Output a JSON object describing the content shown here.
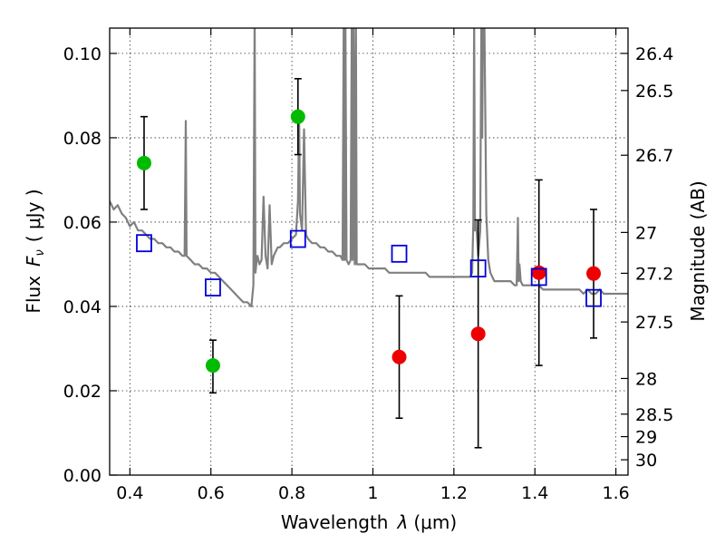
{
  "chart_data": {
    "type": "scatter",
    "xlabel_prefix": "Wavelength",
    "xlabel_symbol": "λ",
    "xlabel_unit": "(μm)",
    "ylabel_prefix": "Flux",
    "ylabel_symbol_main": "F",
    "ylabel_symbol_sub": "ν",
    "ylabel_unit": "( μJy )",
    "y2label": "Magnitude (AB)",
    "xlim": [
      0.35,
      1.63
    ],
    "ylim": [
      0.0,
      0.106
    ],
    "grid": true,
    "x_ticks": [
      {
        "value": 0.4,
        "label": "0.4"
      },
      {
        "value": 0.6,
        "label": "0.6"
      },
      {
        "value": 0.8,
        "label": "0.8"
      },
      {
        "value": 1.0,
        "label": "1"
      },
      {
        "value": 1.2,
        "label": "1.2"
      },
      {
        "value": 1.4,
        "label": "1.4"
      },
      {
        "value": 1.6,
        "label": "1.6"
      }
    ],
    "y_ticks": [
      {
        "value": 0.0,
        "label": "0.00"
      },
      {
        "value": 0.02,
        "label": "0.02"
      },
      {
        "value": 0.04,
        "label": "0.04"
      },
      {
        "value": 0.06,
        "label": "0.06"
      },
      {
        "value": 0.08,
        "label": "0.08"
      },
      {
        "value": 0.1,
        "label": "0.10"
      }
    ],
    "y2_ticks": [
      {
        "mag": 26.4,
        "label": "26.4"
      },
      {
        "mag": 26.5,
        "label": "26.5"
      },
      {
        "mag": 26.7,
        "label": "26.7"
      },
      {
        "mag": 27.0,
        "label": "27"
      },
      {
        "mag": 27.2,
        "label": "27.2"
      },
      {
        "mag": 27.5,
        "label": "27.5"
      },
      {
        "mag": 28.0,
        "label": "28"
      },
      {
        "mag": 28.5,
        "label": "28.5"
      },
      {
        "mag": 29.0,
        "label": "29"
      },
      {
        "mag": 30.0,
        "label": "30"
      }
    ],
    "model_spectrum": {
      "color": "#808080",
      "x": [
        0.35,
        0.36,
        0.37,
        0.38,
        0.39,
        0.4,
        0.41,
        0.42,
        0.43,
        0.44,
        0.45,
        0.46,
        0.47,
        0.48,
        0.49,
        0.5,
        0.51,
        0.52,
        0.53,
        0.535,
        0.538,
        0.54,
        0.55,
        0.56,
        0.57,
        0.58,
        0.59,
        0.6,
        0.61,
        0.62,
        0.63,
        0.64,
        0.65,
        0.66,
        0.67,
        0.68,
        0.69,
        0.7,
        0.705,
        0.708,
        0.71,
        0.712,
        0.715,
        0.72,
        0.725,
        0.73,
        0.735,
        0.74,
        0.745,
        0.75,
        0.755,
        0.76,
        0.765,
        0.77,
        0.78,
        0.79,
        0.8,
        0.81,
        0.815,
        0.818,
        0.82,
        0.825,
        0.83,
        0.835,
        0.84,
        0.85,
        0.86,
        0.87,
        0.88,
        0.89,
        0.9,
        0.91,
        0.92,
        0.925,
        0.928,
        0.93,
        0.932,
        0.935,
        0.94,
        0.945,
        0.948,
        0.95,
        0.952,
        0.955,
        0.958,
        0.96,
        0.97,
        0.98,
        0.99,
        1.0,
        1.01,
        1.02,
        1.03,
        1.04,
        1.05,
        1.06,
        1.07,
        1.08,
        1.09,
        1.1,
        1.11,
        1.12,
        1.13,
        1.14,
        1.15,
        1.16,
        1.17,
        1.18,
        1.19,
        1.2,
        1.21,
        1.22,
        1.23,
        1.24,
        1.245,
        1.248,
        1.25,
        1.252,
        1.255,
        1.26,
        1.265,
        1.268,
        1.27,
        1.272,
        1.275,
        1.28,
        1.285,
        1.29,
        1.3,
        1.31,
        1.32,
        1.33,
        1.34,
        1.35,
        1.355,
        1.358,
        1.36,
        1.362,
        1.365,
        1.37,
        1.38,
        1.39,
        1.4,
        1.41,
        1.42,
        1.43,
        1.44,
        1.45,
        1.46,
        1.47,
        1.48,
        1.49,
        1.5,
        1.51,
        1.52,
        1.53,
        1.54,
        1.55,
        1.56,
        1.57,
        1.58,
        1.59,
        1.6,
        1.61,
        1.62,
        1.63
      ],
      "y": [
        0.065,
        0.063,
        0.064,
        0.062,
        0.061,
        0.059,
        0.06,
        0.058,
        0.058,
        0.057,
        0.056,
        0.056,
        0.055,
        0.055,
        0.054,
        0.054,
        0.053,
        0.053,
        0.052,
        0.052,
        0.084,
        0.052,
        0.051,
        0.05,
        0.05,
        0.049,
        0.049,
        0.048,
        0.048,
        0.047,
        0.046,
        0.045,
        0.044,
        0.043,
        0.042,
        0.041,
        0.041,
        0.04,
        0.045,
        0.11,
        0.048,
        0.05,
        0.052,
        0.05,
        0.051,
        0.066,
        0.052,
        0.049,
        0.064,
        0.05,
        0.052,
        0.053,
        0.054,
        0.054,
        0.055,
        0.055,
        0.056,
        0.057,
        0.065,
        0.085,
        0.062,
        0.058,
        0.082,
        0.057,
        0.056,
        0.055,
        0.055,
        0.054,
        0.054,
        0.053,
        0.053,
        0.052,
        0.052,
        0.051,
        0.11,
        0.051,
        0.11,
        0.051,
        0.05,
        0.051,
        0.11,
        0.051,
        0.11,
        0.05,
        0.11,
        0.05,
        0.05,
        0.05,
        0.049,
        0.049,
        0.049,
        0.049,
        0.049,
        0.048,
        0.048,
        0.048,
        0.048,
        0.048,
        0.048,
        0.048,
        0.048,
        0.048,
        0.048,
        0.047,
        0.047,
        0.047,
        0.047,
        0.047,
        0.047,
        0.047,
        0.047,
        0.047,
        0.047,
        0.047,
        0.048,
        0.06,
        0.11,
        0.058,
        0.06,
        0.052,
        0.058,
        0.11,
        0.08,
        0.108,
        0.11,
        0.062,
        0.051,
        0.048,
        0.046,
        0.046,
        0.046,
        0.046,
        0.046,
        0.045,
        0.045,
        0.061,
        0.046,
        0.05,
        0.046,
        0.045,
        0.045,
        0.045,
        0.045,
        0.045,
        0.044,
        0.044,
        0.044,
        0.044,
        0.044,
        0.044,
        0.044,
        0.044,
        0.044,
        0.044,
        0.043,
        0.044,
        0.043,
        0.043,
        0.044,
        0.043,
        0.043,
        0.043,
        0.043,
        0.043,
        0.043,
        0.043
      ]
    },
    "series": [
      {
        "marker": "circle",
        "color": "#00bb00",
        "points": [
          {
            "x": 0.435,
            "y": 0.074,
            "yerr_low": 0.063,
            "yerr_high": 0.085
          },
          {
            "x": 0.605,
            "y": 0.026,
            "yerr_low": 0.0195,
            "yerr_high": 0.032
          },
          {
            "x": 0.815,
            "y": 0.085,
            "yerr_low": 0.076,
            "yerr_high": 0.094
          }
        ]
      },
      {
        "marker": "circle",
        "color": "#ee0000",
        "points": [
          {
            "x": 1.065,
            "y": 0.028,
            "yerr_low": 0.0135,
            "yerr_high": 0.0425
          },
          {
            "x": 1.26,
            "y": 0.0335,
            "yerr_low": 0.0065,
            "yerr_high": 0.0605
          },
          {
            "x": 1.41,
            "y": 0.048,
            "yerr_low": 0.026,
            "yerr_high": 0.07
          },
          {
            "x": 1.545,
            "y": 0.0478,
            "yerr_low": 0.0325,
            "yerr_high": 0.063
          }
        ]
      },
      {
        "marker": "open-square",
        "color": "#0000dd",
        "points": [
          {
            "x": 0.435,
            "y": 0.055
          },
          {
            "x": 0.605,
            "y": 0.0445
          },
          {
            "x": 0.815,
            "y": 0.056
          },
          {
            "x": 1.065,
            "y": 0.0525
          },
          {
            "x": 1.26,
            "y": 0.049
          },
          {
            "x": 1.41,
            "y": 0.047
          },
          {
            "x": 1.545,
            "y": 0.042
          }
        ]
      }
    ]
  }
}
